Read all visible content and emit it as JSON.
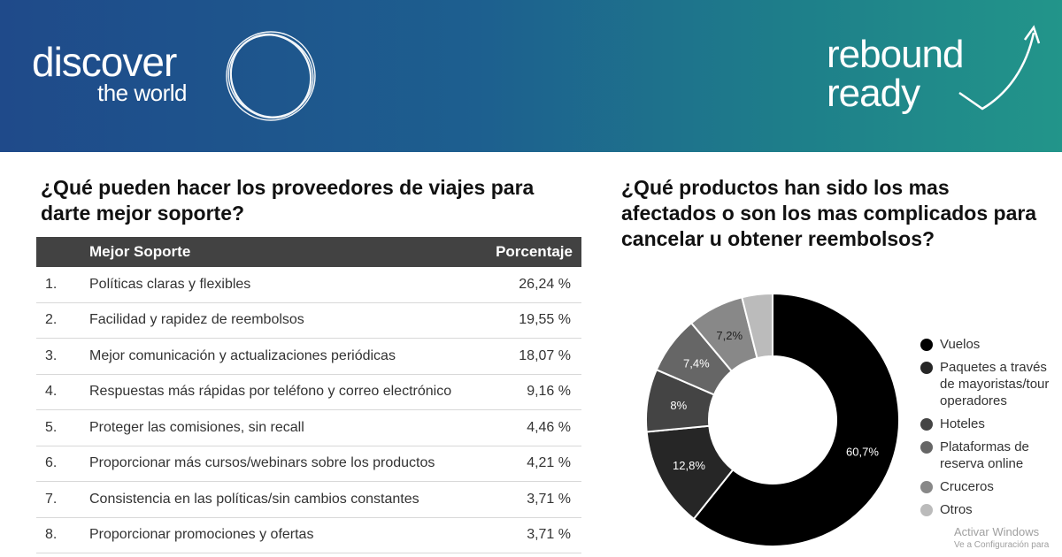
{
  "banner": {
    "brand_left_line1": "discover",
    "brand_left_line2": "the world",
    "brand_right_line1": "rebound",
    "brand_right_line2": "ready",
    "color": "#1f4a8a"
  },
  "table": {
    "title": "¿Qué pueden hacer los proveedores de viajes para darte mejor soporte?",
    "header": {
      "col1": "",
      "col2": "Mejor Soporte",
      "col3": "Porcentaje"
    },
    "rows": [
      {
        "num": "1.",
        "label": "Políticas claras y flexibles",
        "value": "26,24 %"
      },
      {
        "num": "2.",
        "label": "Facilidad y rapidez de reembolsos",
        "value": "19,55 %"
      },
      {
        "num": "3.",
        "label": "Mejor comunicación y actualizaciones periódicas",
        "value": "18,07 %"
      },
      {
        "num": "4.",
        "label": "Respuestas más rápidas por teléfono y correo electrónico",
        "value": "9,16 %"
      },
      {
        "num": "5.",
        "label": "Proteger las comisiones, sin recall",
        "value": "4,46 %"
      },
      {
        "num": "6.",
        "label": "Proporcionar más cursos/webinars sobre los productos",
        "value": "4,21 %"
      },
      {
        "num": "7.",
        "label": "Consistencia en las políticas/sin cambios constantes",
        "value": "3,71 %"
      },
      {
        "num": "8.",
        "label": "Proporcionar promociones y ofertas",
        "value": "3,71 %"
      }
    ]
  },
  "chart_data": {
    "type": "pie",
    "title": "¿Qué productos han sido los mas afectados o son los mas complicados para cancelar u obtener reembolsos?",
    "categories": [
      "Vuelos",
      "Paquetes a través de mayoristas/tour operadores",
      "Hoteles",
      "Plataformas de reserva online",
      "Cruceros",
      "Otros"
    ],
    "values": [
      60.7,
      12.8,
      8,
      7.4,
      7.2,
      3.9
    ],
    "data_labels": [
      "60,7%",
      "12,8%",
      "8%",
      "7,4%",
      "7,2%",
      ""
    ],
    "colors": [
      "#000000",
      "#262626",
      "#444444",
      "#666666",
      "#888888",
      "#bbbbbb"
    ],
    "legend_position": "right"
  },
  "watermark": {
    "line1": "Activar Windows",
    "line2": "Ve a Configuración para"
  }
}
